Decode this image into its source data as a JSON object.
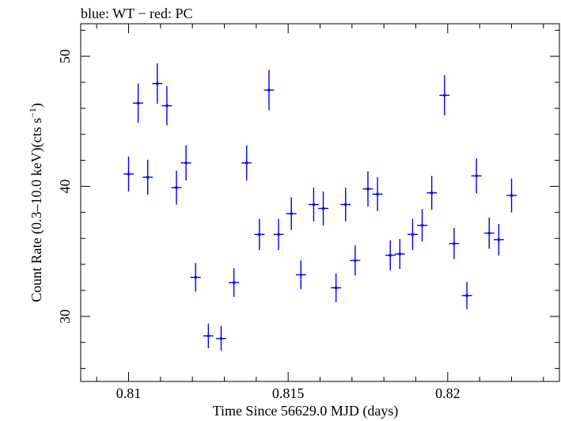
{
  "chart_data": {
    "type": "scatter",
    "title": "blue: WT − red: PC",
    "xlabel": "Time Since 56629.0 MJD (days)",
    "ylabel_main": "Count Rate (0.3–10.0 keV)(cts s",
    "ylabel_sup": "−1",
    "ylabel_close": ")",
    "xlim": [
      0.8085,
      0.8235
    ],
    "ylim": [
      25.0,
      52.5
    ],
    "xticks": [
      0.81,
      0.815,
      0.82
    ],
    "xtick_labels": [
      "0.81",
      "0.815",
      "0.82"
    ],
    "yticks": [
      30,
      40,
      50
    ],
    "ytick_labels": [
      "30",
      "40",
      "50"
    ],
    "grid": false,
    "series": [
      {
        "color": "#0000ee",
        "x": [
          0.81,
          0.8103,
          0.8106,
          0.8109,
          0.8112,
          0.8115,
          0.8118,
          0.8121,
          0.8125,
          0.8129,
          0.8133,
          0.8137,
          0.8141,
          0.8144,
          0.8147,
          0.8151,
          0.8154,
          0.8158,
          0.8161,
          0.8165,
          0.8168,
          0.8171,
          0.8175,
          0.8178,
          0.8182,
          0.8185,
          0.8189,
          0.8192,
          0.8195,
          0.8199,
          0.8202,
          0.8206,
          0.8209,
          0.8213,
          0.8216,
          0.822
        ],
        "y": [
          40.95,
          46.4,
          40.7,
          47.9,
          46.2,
          39.9,
          41.8,
          33.0,
          28.5,
          28.3,
          32.6,
          41.8,
          36.3,
          47.4,
          36.3,
          37.9,
          33.2,
          38.6,
          38.3,
          32.2,
          38.6,
          34.3,
          39.8,
          39.4,
          34.7,
          34.8,
          36.3,
          37.0,
          39.5,
          47.0,
          35.6,
          31.6,
          40.8,
          36.4,
          35.9,
          39.3
        ],
        "yerr": [
          1.35,
          1.5,
          1.35,
          1.55,
          1.5,
          1.3,
          1.35,
          1.1,
          0.95,
          0.95,
          1.1,
          1.35,
          1.2,
          1.55,
          1.2,
          1.25,
          1.1,
          1.3,
          1.3,
          1.1,
          1.3,
          1.15,
          1.35,
          1.3,
          1.15,
          1.15,
          1.2,
          1.25,
          1.3,
          1.55,
          1.2,
          1.05,
          1.35,
          1.2,
          1.2,
          1.3
        ],
        "xerr": 0.00016
      }
    ]
  }
}
